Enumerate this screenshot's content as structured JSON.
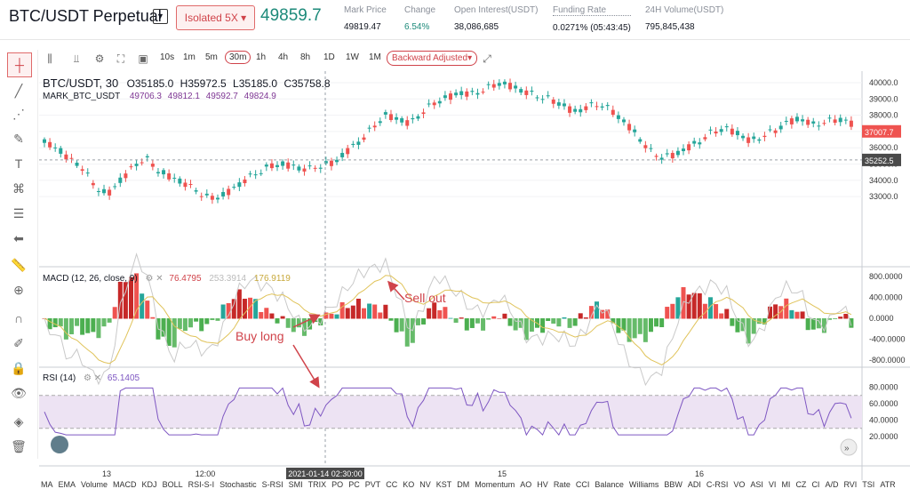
{
  "header": {
    "pair": "BTC/USDT Perpetual",
    "margin_mode": "Isolated  5X",
    "last_price": "49859.7",
    "stats": [
      {
        "label": "Mark Price",
        "value": "49819.47",
        "value_color": "#131722"
      },
      {
        "label": "Change",
        "value": "6.54%",
        "value_color": "#1d8a7a"
      },
      {
        "label": "Open Interest(USDT)",
        "value": "38,086,685",
        "value_color": "#131722"
      },
      {
        "label": "Funding Rate",
        "value": "0.0271% (05:43:45)",
        "value_color": "#131722"
      },
      {
        "label": "24H Volume(USDT)",
        "value": "795,845,438",
        "value_color": "#131722"
      }
    ]
  },
  "toolbar": {
    "timeframes": [
      "10s",
      "1m",
      "5m",
      "30m",
      "1h",
      "4h",
      "8h",
      "1D",
      "1W",
      "1M"
    ],
    "active_timeframe": "30m",
    "adjust": "Backward Adjusted"
  },
  "legend": {
    "symbol": "BTC/USDT, 30",
    "o": "O35185.0",
    "h": "H35972.5",
    "l": "L35185.0",
    "c": "C35758.8",
    "mark": "MARK_BTC_USDT",
    "mark_values": [
      "49706.3",
      "49812.1",
      "49592.7",
      "49824.9"
    ],
    "macd_title": "MACD (12, 26, close, 9)",
    "macd_values": [
      "76.4795",
      "253.3914",
      "176.9119"
    ],
    "rsi_title": "RSI (14)",
    "rsi_value": "65.1405"
  },
  "price_axis": [
    "40000.0",
    "39000.0",
    "38000.0",
    "37000.0",
    "36000.0",
    "35000.0",
    "34000.0",
    "33000.0"
  ],
  "price_tag_last": "37007.7",
  "price_tag_cross": "35252.5",
  "macd_axis": [
    "800.0000",
    "400.0000",
    "0.0000",
    "-400.0000",
    "-800.0000"
  ],
  "rsi_axis": [
    "80.0000",
    "60.0000",
    "40.0000",
    "20.0000"
  ],
  "time_axis": [
    "13",
    "12:00",
    "15",
    "16"
  ],
  "crosshair_time": "2021-01-14 02:30:00",
  "annotations": {
    "sell": "Sell out",
    "buy": "Buy long"
  },
  "bottom_indicators": [
    "MA",
    "EMA",
    "Volume",
    "MACD",
    "KDJ",
    "BOLL",
    "RSI-S-I",
    "Stochastic",
    "S-RSI",
    "SMI",
    "TRIX",
    "PO",
    "PC",
    "PVT",
    "CC",
    "KO",
    "NV",
    "KST",
    "DM",
    "Momentum",
    "AO",
    "HV",
    "Rate",
    "CCI",
    "Balance",
    "Williams",
    "BBW",
    "ADI",
    "C-RSI",
    "VO",
    "ASI",
    "VI",
    "MI",
    "CZ",
    "CI",
    "A/D",
    "RVI",
    "TSI",
    "ATR"
  ],
  "colors": {
    "up": "#26a69a",
    "down": "#ef5350",
    "accent": "#d0434a",
    "rsi_fill": "#ede3f3",
    "rsi_line": "#7e57c2"
  }
}
